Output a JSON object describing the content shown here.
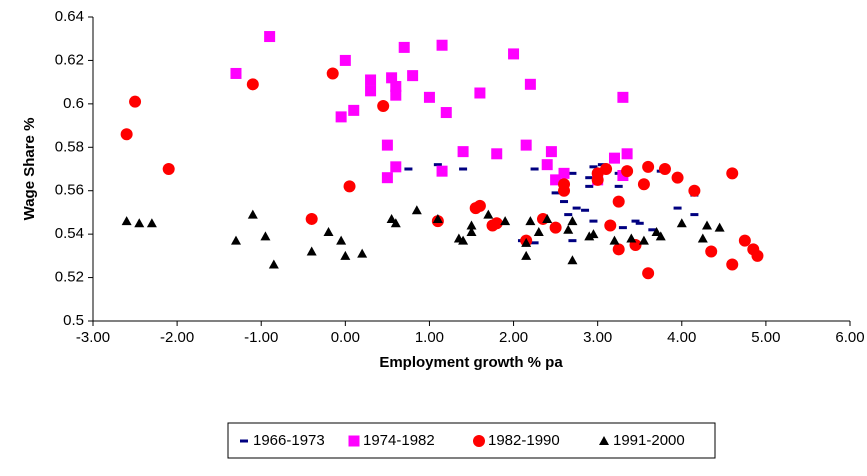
{
  "chart_data": {
    "type": "scatter",
    "xlabel": "Employment growth % pa",
    "ylabel": "Wage Share %",
    "xlim": [
      -3,
      6
    ],
    "ylim": [
      0.5,
      0.64
    ],
    "xticks": [
      {
        "value": -3,
        "label": "-3.00"
      },
      {
        "value": -2,
        "label": "-2.00"
      },
      {
        "value": -1,
        "label": "-1.00"
      },
      {
        "value": 0,
        "label": "0.00"
      },
      {
        "value": 1,
        "label": "1.00"
      },
      {
        "value": 2,
        "label": "2.00"
      },
      {
        "value": 3,
        "label": "3.00"
      },
      {
        "value": 4,
        "label": "4.00"
      },
      {
        "value": 5,
        "label": "5.00"
      },
      {
        "value": 6,
        "label": "6.00"
      }
    ],
    "yticks": [
      0.5,
      0.52,
      0.54,
      0.56,
      0.58,
      0.6,
      0.62,
      0.64
    ],
    "grid": false,
    "legend": "bottom",
    "series": [
      {
        "name": "1966-1973",
        "color": "#000080",
        "marker": "dash",
        "x": [
          0.75,
          1.1,
          1.4,
          2.25,
          2.7,
          2.9,
          2.95,
          3.05,
          3.25,
          3.25,
          2.9,
          2.5,
          2.6,
          2.65,
          2.75,
          2.85,
          2.7,
          3.45,
          3.5,
          3.65,
          3.75,
          3.95,
          4.15,
          4.15,
          2.25,
          2.1,
          3.3,
          2.95
        ],
        "y": [
          0.57,
          0.572,
          0.57,
          0.57,
          0.568,
          0.566,
          0.571,
          0.572,
          0.568,
          0.562,
          0.562,
          0.559,
          0.555,
          0.549,
          0.552,
          0.551,
          0.537,
          0.546,
          0.545,
          0.542,
          0.569,
          0.552,
          0.549,
          0.558,
          0.536,
          0.537,
          0.543,
          0.546
        ]
      },
      {
        "name": "1974-1982",
        "color": "#ff00ff",
        "marker": "square",
        "x": [
          -1.3,
          -0.9,
          0.0,
          -0.05,
          0.1,
          0.3,
          0.3,
          0.55,
          0.6,
          0.6,
          0.7,
          0.8,
          1.0,
          1.15,
          1.2,
          0.5,
          0.5,
          0.6,
          1.15,
          1.4,
          1.6,
          1.8,
          2.0,
          2.2,
          2.15,
          2.4,
          2.45,
          2.5,
          2.6,
          3.2,
          3.3,
          3.35,
          3.3,
          3.0
        ],
        "y": [
          0.614,
          0.631,
          0.62,
          0.594,
          0.597,
          0.611,
          0.606,
          0.612,
          0.608,
          0.604,
          0.626,
          0.613,
          0.603,
          0.627,
          0.596,
          0.581,
          0.566,
          0.571,
          0.569,
          0.578,
          0.605,
          0.577,
          0.623,
          0.609,
          0.581,
          0.572,
          0.578,
          0.565,
          0.568,
          0.575,
          0.603,
          0.577,
          0.567,
          0.565
        ]
      },
      {
        "name": "1982-1990",
        "color": "#ff0000",
        "marker": "circle",
        "x": [
          -2.6,
          -2.5,
          -2.1,
          -1.1,
          -0.15,
          0.45,
          0.05,
          -0.4,
          1.1,
          1.55,
          1.6,
          1.75,
          1.8,
          2.15,
          2.35,
          2.5,
          2.6,
          2.6,
          3.0,
          3.0,
          3.1,
          3.15,
          3.25,
          3.25,
          3.35,
          3.45,
          3.55,
          3.6,
          3.6,
          3.8,
          3.95,
          4.15,
          4.35,
          4.6,
          4.6,
          4.75,
          4.85,
          4.9
        ],
        "y": [
          0.586,
          0.601,
          0.57,
          0.609,
          0.614,
          0.599,
          0.562,
          0.547,
          0.546,
          0.552,
          0.553,
          0.544,
          0.545,
          0.537,
          0.547,
          0.543,
          0.563,
          0.56,
          0.568,
          0.565,
          0.57,
          0.544,
          0.533,
          0.555,
          0.569,
          0.535,
          0.563,
          0.571,
          0.522,
          0.57,
          0.566,
          0.56,
          0.532,
          0.568,
          0.526,
          0.537,
          0.533,
          0.53
        ]
      },
      {
        "name": "1991-2000",
        "color": "#000000",
        "marker": "triangle",
        "x": [
          -2.6,
          -2.45,
          -2.3,
          -1.3,
          -1.1,
          -0.95,
          -0.85,
          -0.4,
          -0.2,
          -0.05,
          0.0,
          0.2,
          0.55,
          0.6,
          0.85,
          1.1,
          1.35,
          1.4,
          1.5,
          1.5,
          1.7,
          1.9,
          2.15,
          2.15,
          2.2,
          2.3,
          2.4,
          2.65,
          2.7,
          2.7,
          2.9,
          2.95,
          3.2,
          3.4,
          3.55,
          3.7,
          3.75,
          4.0,
          4.25,
          4.3,
          4.45
        ],
        "y": [
          0.546,
          0.545,
          0.545,
          0.537,
          0.549,
          0.539,
          0.526,
          0.532,
          0.541,
          0.537,
          0.53,
          0.531,
          0.547,
          0.545,
          0.551,
          0.547,
          0.538,
          0.537,
          0.541,
          0.544,
          0.549,
          0.546,
          0.536,
          0.53,
          0.546,
          0.541,
          0.547,
          0.542,
          0.546,
          0.528,
          0.539,
          0.54,
          0.537,
          0.538,
          0.537,
          0.541,
          0.539,
          0.545,
          0.538,
          0.544,
          0.543
        ]
      }
    ]
  }
}
